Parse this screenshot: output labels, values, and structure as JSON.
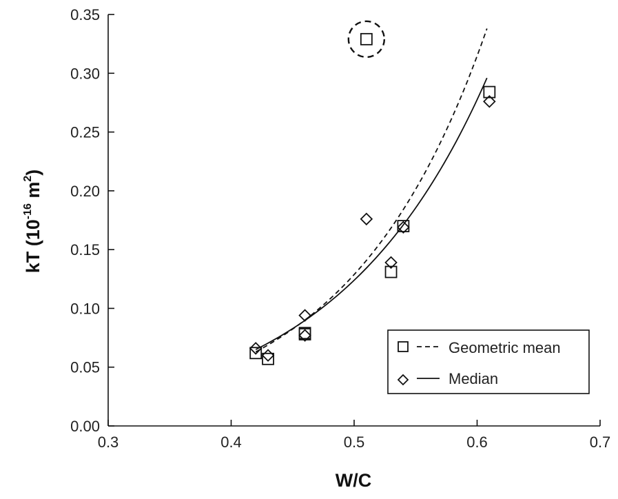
{
  "chart_data": {
    "type": "scatter",
    "title": "",
    "xlabel": "W/C",
    "ylabel": {
      "prefix": "kT (10",
      "exponent1": "-16",
      "middle": " m",
      "exponent2": "2",
      "suffix": ")"
    },
    "xlim": [
      0.3,
      0.7
    ],
    "ylim": [
      0.0,
      0.35
    ],
    "x_ticks": [
      "0.3",
      "0.4",
      "0.5",
      "0.6",
      "0.7"
    ],
    "y_ticks": [
      "0.00",
      "0.05",
      "0.10",
      "0.15",
      "0.20",
      "0.25",
      "0.30",
      "0.35"
    ],
    "grid": false,
    "legend_position": "bottom-right",
    "series": [
      {
        "name": "Geometric mean",
        "marker": "square",
        "line_style": "dashed",
        "points": [
          {
            "x": 0.42,
            "y": 0.062
          },
          {
            "x": 0.43,
            "y": 0.057
          },
          {
            "x": 0.46,
            "y": 0.078
          },
          {
            "x": 0.46,
            "y": 0.079
          },
          {
            "x": 0.51,
            "y": 0.329,
            "outlier": true
          },
          {
            "x": 0.53,
            "y": 0.131
          },
          {
            "x": 0.54,
            "y": 0.17
          },
          {
            "x": 0.61,
            "y": 0.284
          }
        ],
        "fit": {
          "type": "exponential",
          "x_range": [
            0.42,
            0.608
          ],
          "y_start": 0.063,
          "y_end": 0.338
        }
      },
      {
        "name": "Median",
        "marker": "diamond",
        "line_style": "solid",
        "points": [
          {
            "x": 0.42,
            "y": 0.066
          },
          {
            "x": 0.43,
            "y": 0.06
          },
          {
            "x": 0.46,
            "y": 0.094
          },
          {
            "x": 0.46,
            "y": 0.077
          },
          {
            "x": 0.51,
            "y": 0.176
          },
          {
            "x": 0.53,
            "y": 0.139
          },
          {
            "x": 0.54,
            "y": 0.169
          },
          {
            "x": 0.61,
            "y": 0.276
          }
        ],
        "fit": {
          "type": "exponential",
          "x_range": [
            0.42,
            0.608
          ],
          "y_start": 0.065,
          "y_end": 0.296
        }
      }
    ],
    "annotations": [
      {
        "type": "dashed-circle",
        "around": {
          "x": 0.51,
          "y": 0.329
        }
      }
    ]
  }
}
